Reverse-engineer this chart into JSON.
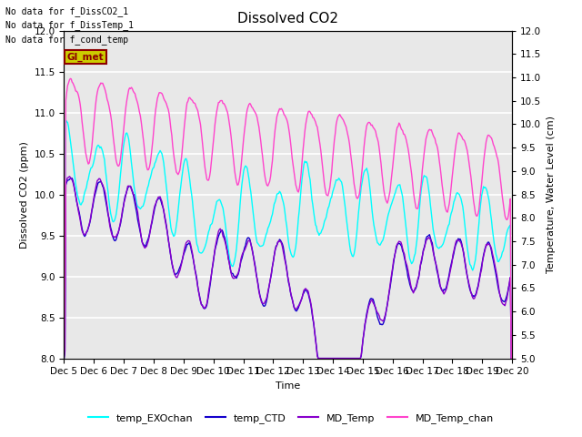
{
  "title": "Dissolved CO2",
  "xlabel": "Time",
  "ylabel_left": "Dissolved CO2 (ppm)",
  "ylabel_right": "Temperature, Water Level (cm)",
  "ylim_left": [
    8.0,
    12.0
  ],
  "ylim_right": [
    5.0,
    12.0
  ],
  "yticks_left": [
    8.0,
    8.5,
    9.0,
    9.5,
    10.0,
    10.5,
    11.0,
    11.5,
    12.0
  ],
  "yticks_right": [
    5.0,
    5.5,
    6.0,
    6.5,
    7.0,
    7.5,
    8.0,
    8.5,
    9.0,
    9.5,
    10.0,
    10.5,
    11.0,
    11.5,
    12.0
  ],
  "xtick_labels": [
    "Dec 5",
    "Dec 6",
    "Dec 7",
    "Dec 8",
    "Dec 9",
    "Dec 10",
    "Dec 11",
    "Dec 12",
    "Dec 13",
    "Dec 14",
    "Dec 15",
    "Dec 16",
    "Dec 17",
    "Dec 18",
    "Dec 19",
    "Dec 20"
  ],
  "no_data_texts": [
    "No data for f_DissCO2_1",
    "No data for f_DissTemp_1",
    "No data for f_cond_temp"
  ],
  "gi_met_text": "GI_met",
  "legend_entries": [
    "temp_EXOchan",
    "temp_CTD",
    "MD_Temp",
    "MD_Temp_chan"
  ],
  "colors": {
    "temp_EXOchan": "#00ffff",
    "temp_CTD": "#1400cc",
    "MD_Temp": "#8800cc",
    "MD_Temp_chan": "#ff44cc"
  },
  "bg_color": "#e8e8e8",
  "grid_color": "white",
  "title_fontsize": 11,
  "label_fontsize": 8,
  "tick_fontsize": 7.5
}
